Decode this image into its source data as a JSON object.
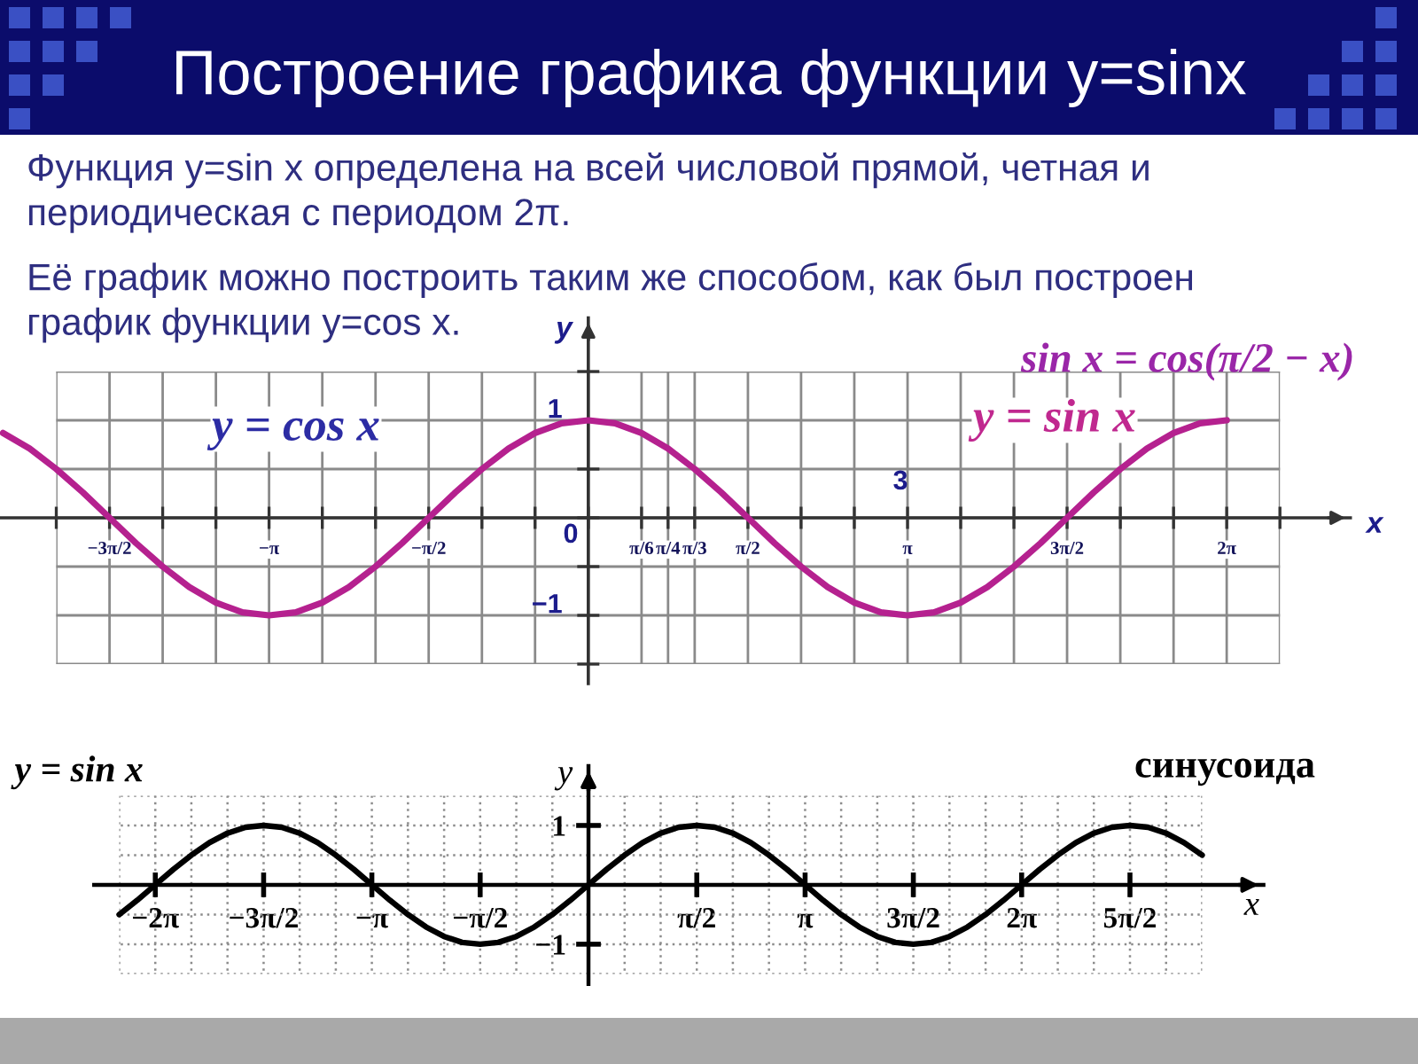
{
  "chart_data": [
    {
      "type": "line",
      "title": "Построение графика функции y=sinx",
      "subtitle": "Функция y=sin x определена на всей числовой прямой, четная и\nпериодическая с периодом 2π.",
      "xlabel": "x",
      "ylabel": "y",
      "annotations": [
        "Её график можно построить таким же способом, как был построен\nграфик функции y=cos x.",
        "sin x = cos(π/2 − x)",
        "y = cos x",
        "y = sin x",
        "3",
        "0"
      ],
      "x": [
        -5.76,
        -5.498,
        -5.236,
        -4.974,
        -4.712,
        -4.451,
        -4.189,
        -3.927,
        -3.665,
        -3.403,
        -3.142,
        -2.88,
        -2.618,
        -2.356,
        -2.094,
        -1.833,
        -1.571,
        -1.309,
        -1.047,
        -0.785,
        -0.524,
        -0.262,
        0,
        0.262,
        0.524,
        0.785,
        1.047,
        1.309,
        1.571,
        1.833,
        2.094,
        2.356,
        2.618,
        2.88,
        3.142,
        3.403,
        3.665,
        3.927,
        4.189,
        4.451,
        4.712,
        4.974,
        5.236,
        5.498,
        5.76,
        6.021,
        6.283
      ],
      "series": [
        {
          "color": "#b5218f",
          "values": [
            0.87,
            0.71,
            0.5,
            0.26,
            0,
            -0.26,
            -0.5,
            -0.71,
            -0.87,
            -0.97,
            -1,
            -0.97,
            -0.87,
            -0.71,
            -0.5,
            -0.26,
            0,
            0.26,
            0.5,
            0.71,
            0.87,
            0.97,
            1,
            0.97,
            0.87,
            0.71,
            0.5,
            0.26,
            0,
            -0.26,
            -0.5,
            -0.71,
            -0.87,
            -0.97,
            -1,
            -0.97,
            -0.87,
            -0.71,
            -0.5,
            -0.26,
            0,
            0.26,
            0.5,
            0.71,
            0.87,
            0.97,
            1
          ]
        }
      ],
      "xlim": [
        -5.79,
        7.5
      ],
      "ylim": [
        -1.7,
        2.05
      ],
      "xticks": [
        {
          "value": -5.236,
          "label": null
        },
        {
          "value": -4.712,
          "label": "−3π/2"
        },
        {
          "value": -4.189,
          "label": null
        },
        {
          "value": -3.665,
          "label": null
        },
        {
          "value": -3.142,
          "label": "−π"
        },
        {
          "value": -2.618,
          "label": null
        },
        {
          "value": -2.094,
          "label": null
        },
        {
          "value": -1.571,
          "label": "−π/2"
        },
        {
          "value": -1.047,
          "label": null
        },
        {
          "value": -0.524,
          "label": null
        },
        {
          "value": 0,
          "label": null
        },
        {
          "value": 0.524,
          "label": "π/6"
        },
        {
          "value": 0.785,
          "label": "π/4"
        },
        {
          "value": 1.047,
          "label": "π/3"
        },
        {
          "value": 1.571,
          "label": "π/2"
        },
        {
          "value": 2.094,
          "label": null
        },
        {
          "value": 2.618,
          "label": null
        },
        {
          "value": 3.142,
          "label": "π"
        },
        {
          "value": 3.665,
          "label": null
        },
        {
          "value": 4.189,
          "label": null
        },
        {
          "value": 4.712,
          "label": "3π/2"
        },
        {
          "value": 5.236,
          "label": null
        },
        {
          "value": 5.76,
          "label": null
        },
        {
          "value": 6.283,
          "label": "2π"
        },
        {
          "value": 6.807,
          "label": null
        }
      ],
      "yticks": [
        {
          "value": -1.5,
          "label": null
        },
        {
          "value": -1,
          "label": "−1"
        },
        {
          "value": -0.5,
          "label": null
        },
        {
          "value": 0,
          "label": null
        },
        {
          "value": 0.5,
          "label": null
        },
        1,
        {
          "value": 1.5,
          "label": null
        }
      ],
      "grid": true
    },
    {
      "type": "line",
      "title": "y = sin x",
      "xlabel": "x",
      "ylabel": "y",
      "annotations": [
        "синусоида"
      ],
      "x": [
        -6.807,
        -6.545,
        -6.283,
        -6.021,
        -5.76,
        -5.498,
        -5.236,
        -4.974,
        -4.712,
        -4.451,
        -4.189,
        -3.927,
        -3.665,
        -3.403,
        -3.142,
        -2.88,
        -2.618,
        -2.356,
        -2.094,
        -1.833,
        -1.571,
        -1.309,
        -1.047,
        -0.785,
        -0.524,
        -0.262,
        0,
        0.262,
        0.524,
        0.785,
        1.047,
        1.309,
        1.571,
        1.833,
        2.094,
        2.356,
        2.618,
        2.88,
        3.142,
        3.403,
        3.665,
        3.927,
        4.189,
        4.451,
        4.712,
        4.974,
        5.236,
        5.498,
        5.76,
        6.021,
        6.283,
        6.545,
        6.807,
        7.069,
        7.33,
        7.592,
        7.854,
        8.116,
        8.378,
        8.639,
        8.901
      ],
      "series": [
        {
          "color": "#000000",
          "values": [
            -0.5,
            -0.26,
            0,
            0.26,
            0.5,
            0.71,
            0.87,
            0.97,
            1,
            0.97,
            0.87,
            0.71,
            0.5,
            0.26,
            0,
            -0.26,
            -0.5,
            -0.71,
            -0.87,
            -0.97,
            -1,
            -0.97,
            -0.87,
            -0.71,
            -0.5,
            -0.26,
            0,
            0.26,
            0.5,
            0.71,
            0.87,
            0.97,
            1,
            0.97,
            0.87,
            0.71,
            0.5,
            0.26,
            0,
            -0.26,
            -0.5,
            -0.71,
            -0.87,
            -0.97,
            -1,
            -0.97,
            -0.87,
            -0.71,
            -0.5,
            -0.26,
            0,
            0.26,
            0.5,
            0.71,
            0.87,
            0.97,
            1,
            0.97,
            0.87,
            0.71,
            0.5
          ]
        }
      ],
      "xlim": [
        -7.17,
        9.79
      ],
      "ylim": [
        -1.67,
        2.0
      ],
      "xticks": [
        {
          "value": -6.807,
          "label": null
        },
        {
          "value": -6.283,
          "label": "−2π"
        },
        {
          "value": -5.76,
          "label": null
        },
        {
          "value": -5.236,
          "label": null
        },
        {
          "value": -4.712,
          "label": "−3π/2"
        },
        {
          "value": -4.189,
          "label": null
        },
        {
          "value": -3.665,
          "label": null
        },
        {
          "value": -3.142,
          "label": "−π"
        },
        {
          "value": -2.618,
          "label": null
        },
        {
          "value": -2.094,
          "label": null
        },
        {
          "value": -1.571,
          "label": "−π/2"
        },
        {
          "value": -1.047,
          "label": null
        },
        {
          "value": -0.524,
          "label": null
        },
        {
          "value": 0,
          "label": null
        },
        {
          "value": 0.524,
          "label": null
        },
        {
          "value": 1.047,
          "label": null
        },
        {
          "value": 1.571,
          "label": "π/2"
        },
        {
          "value": 2.094,
          "label": null
        },
        {
          "value": 2.618,
          "label": null
        },
        {
          "value": 3.142,
          "label": "π"
        },
        {
          "value": 3.665,
          "label": null
        },
        {
          "value": 4.189,
          "label": null
        },
        {
          "value": 4.712,
          "label": "3π/2"
        },
        {
          "value": 5.236,
          "label": null
        },
        {
          "value": 5.76,
          "label": null
        },
        {
          "value": 6.283,
          "label": "2π"
        },
        {
          "value": 6.807,
          "label": null
        },
        {
          "value": 7.33,
          "label": null
        },
        {
          "value": 7.854,
          "label": "5π/2"
        },
        {
          "value": 8.378,
          "label": null
        },
        {
          "value": 8.901,
          "label": null
        }
      ],
      "yticks": [
        {
          "value": -1.5,
          "label": null
        },
        {
          "value": -1,
          "label": "−1"
        },
        {
          "value": -0.5,
          "label": null
        },
        {
          "value": 0,
          "label": null
        },
        {
          "value": 0.5,
          "label": null
        },
        1,
        {
          "value": 1.5,
          "label": null
        }
      ],
      "grid": true
    }
  ]
}
